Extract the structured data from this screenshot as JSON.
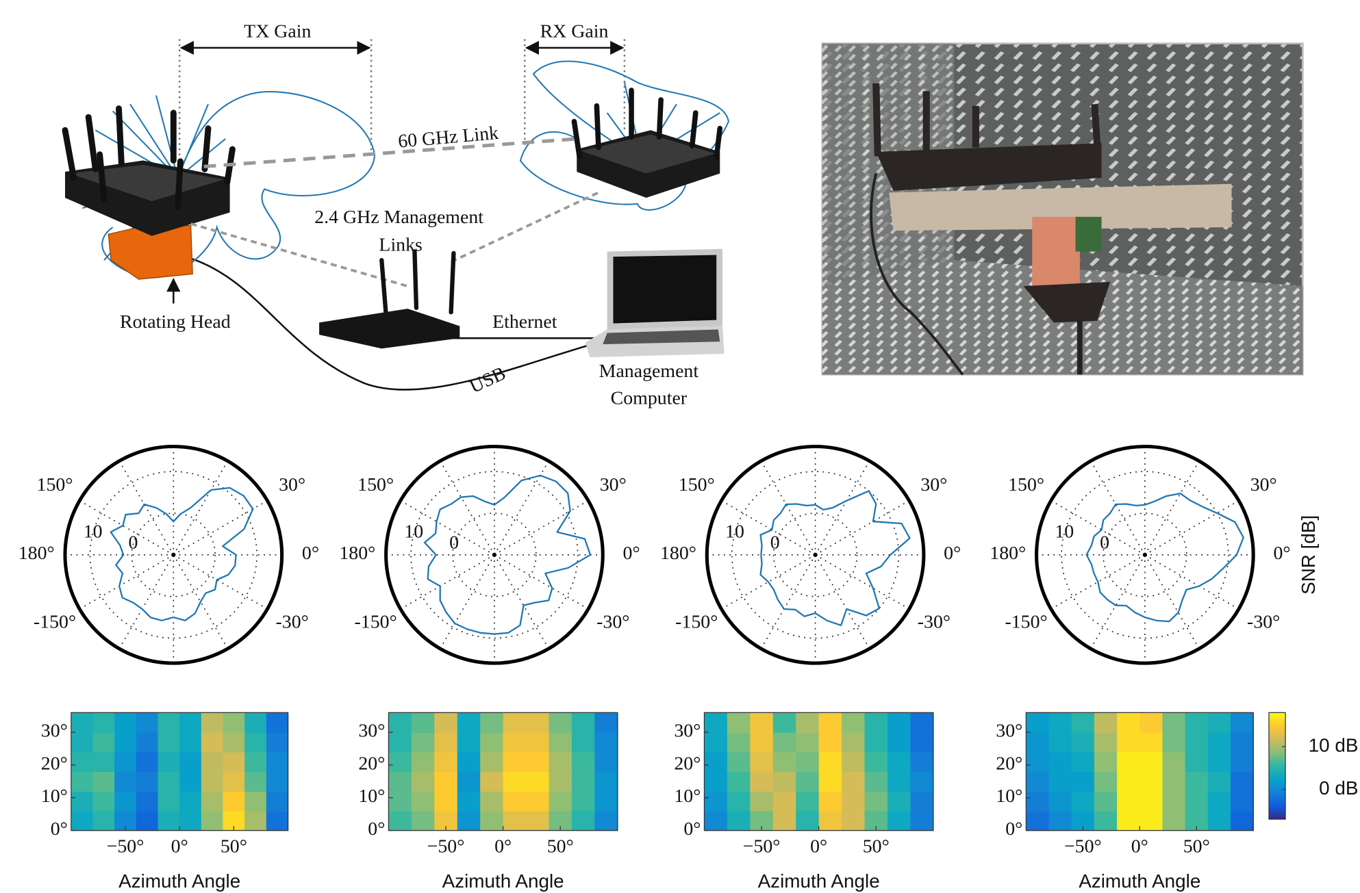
{
  "diagram": {
    "tx_gain": "TX Gain",
    "rx_gain": "RX Gain",
    "link_60": "60 GHz Link",
    "mgmt_line1": "2.4 GHz Management",
    "mgmt_line2": "Links",
    "rotating_head": "Rotating Head",
    "ethernet": "Ethernet",
    "usb": "USB",
    "computer_line1": "Management",
    "computer_line2": "Computer"
  },
  "chart_data": [
    {
      "type": "polar",
      "rlim": [
        -10,
        16
      ],
      "rticks": [
        0,
        10
      ],
      "thetaticks": [
        {
          "value": 0,
          "label": "0°"
        },
        {
          "value": 30,
          "label": "30°"
        },
        {
          "value": 60,
          "label": null
        },
        {
          "value": 90,
          "label": null
        },
        {
          "value": 120,
          "label": null
        },
        {
          "value": 150,
          "label": "150°"
        },
        {
          "value": 180,
          "label": "180°"
        },
        {
          "value": -150,
          "label": "-150°"
        },
        {
          "value": -120,
          "label": null
        },
        {
          "value": -90,
          "label": null
        },
        {
          "value": -60,
          "label": null
        },
        {
          "value": -30,
          "label": "-30°"
        }
      ],
      "color": "#1f77b4",
      "x": [
        0,
        10,
        20,
        30,
        40,
        50,
        60,
        70,
        80,
        90,
        100,
        110,
        120,
        130,
        140,
        150,
        160,
        170,
        180,
        190,
        200,
        210,
        220,
        230,
        240,
        250,
        260,
        270,
        280,
        290,
        300,
        310,
        320,
        330,
        340,
        350
      ],
      "values": [
        5,
        2,
        8,
        12,
        12,
        11,
        8,
        2,
        0,
        -2,
        0,
        2,
        4,
        3,
        5,
        4,
        6,
        3,
        2,
        4,
        3,
        5,
        6,
        5,
        5,
        6,
        6,
        5,
        6,
        5,
        3,
        2,
        3,
        2,
        4,
        5
      ]
    },
    {
      "type": "polar",
      "rlim": [
        -10,
        16
      ],
      "rticks": [
        0,
        10
      ],
      "thetaticks": [
        {
          "value": 0,
          "label": "0°"
        },
        {
          "value": 30,
          "label": "30°"
        },
        {
          "value": 60,
          "label": null
        },
        {
          "value": 90,
          "label": null
        },
        {
          "value": 120,
          "label": null
        },
        {
          "value": 150,
          "label": "150°"
        },
        {
          "value": 180,
          "label": "180°"
        },
        {
          "value": -150,
          "label": "-150°"
        },
        {
          "value": -120,
          "label": null
        },
        {
          "value": -90,
          "label": null
        },
        {
          "value": -60,
          "label": null
        },
        {
          "value": -30,
          "label": "-30°"
        }
      ],
      "color": "#1f77b4",
      "x": [
        0,
        10,
        20,
        30,
        40,
        50,
        60,
        70,
        80,
        90,
        100,
        110,
        120,
        130,
        140,
        150,
        160,
        170,
        180,
        190,
        200,
        210,
        220,
        230,
        240,
        250,
        260,
        270,
        280,
        290,
        300,
        310,
        320,
        330,
        340,
        350
      ],
      "values": [
        13,
        12,
        6,
        11,
        13,
        13,
        12,
        9,
        4,
        2,
        3,
        5,
        6,
        6,
        7,
        6,
        5,
        7,
        4,
        6,
        7,
        5,
        7,
        8,
        9,
        9,
        9,
        9,
        9,
        8,
        4,
        5,
        7,
        6,
        3,
        8
      ]
    },
    {
      "type": "polar",
      "rlim": [
        -10,
        16
      ],
      "rticks": [
        0,
        10
      ],
      "thetaticks": [
        {
          "value": 0,
          "label": "0°"
        },
        {
          "value": 30,
          "label": "30°"
        },
        {
          "value": 60,
          "label": null
        },
        {
          "value": 90,
          "label": null
        },
        {
          "value": 120,
          "label": null
        },
        {
          "value": 150,
          "label": "150°"
        },
        {
          "value": 180,
          "label": "180°"
        },
        {
          "value": -150,
          "label": "-150°"
        },
        {
          "value": -120,
          "label": null
        },
        {
          "value": -90,
          "label": null
        },
        {
          "value": -60,
          "label": null
        },
        {
          "value": -30,
          "label": "-30°"
        }
      ],
      "color": "#1f77b4",
      "x": [
        0,
        10,
        20,
        30,
        40,
        50,
        60,
        70,
        80,
        90,
        100,
        110,
        120,
        130,
        140,
        150,
        160,
        170,
        180,
        190,
        200,
        210,
        220,
        230,
        240,
        250,
        260,
        270,
        280,
        290,
        300,
        310,
        320,
        330,
        340,
        350
      ],
      "values": [
        8,
        13,
        12,
        6,
        9,
        10,
        5,
        2,
        1,
        2,
        2,
        3,
        4,
        3,
        3,
        2,
        4,
        3,
        3,
        3,
        4,
        3,
        3,
        4,
        5,
        4,
        5,
        4,
        6,
        8,
        5,
        9,
        10,
        6,
        3,
        6
      ]
    },
    {
      "type": "polar",
      "rlim": [
        -10,
        16
      ],
      "rticks": [
        0,
        10
      ],
      "thetaticks": [
        {
          "value": 0,
          "label": "0°"
        },
        {
          "value": 30,
          "label": "30°"
        },
        {
          "value": 60,
          "label": null
        },
        {
          "value": 90,
          "label": null
        },
        {
          "value": 120,
          "label": null
        },
        {
          "value": 150,
          "label": "150°"
        },
        {
          "value": 180,
          "label": "180°"
        },
        {
          "value": -150,
          "label": "-150°"
        },
        {
          "value": -120,
          "label": null
        },
        {
          "value": -90,
          "label": null
        },
        {
          "value": -60,
          "label": null
        },
        {
          "value": -30,
          "label": "-30°"
        }
      ],
      "color": "#1f77b4",
      "rlabel": "SNR [dB]",
      "x": [
        0,
        10,
        20,
        30,
        40,
        50,
        60,
        70,
        80,
        90,
        100,
        110,
        120,
        130,
        140,
        150,
        160,
        170,
        180,
        190,
        200,
        210,
        220,
        230,
        240,
        250,
        260,
        270,
        280,
        290,
        300,
        310,
        320,
        330,
        340,
        350
      ],
      "values": [
        12,
        14,
        13,
        10,
        8,
        7,
        7,
        5,
        3,
        2,
        2,
        3,
        4,
        3,
        3,
        2,
        3,
        3,
        4,
        3,
        3,
        3,
        4,
        4,
        4,
        3,
        4,
        5,
        6,
        7,
        6,
        4,
        3,
        5,
        7,
        9
      ]
    },
    {
      "type": "heatmap",
      "xlabel": "Azimuth Angle",
      "xlim": [
        -100,
        100
      ],
      "ylim": [
        0,
        36
      ],
      "clim": [
        -7,
        18
      ],
      "xbins": [
        -100,
        -80,
        -60,
        -40,
        -20,
        0,
        20,
        40,
        60,
        80,
        100
      ],
      "ybins": [
        0,
        6,
        12,
        18,
        24,
        30,
        36
      ],
      "xticks": [
        {
          "value": -50,
          "label": "−50°"
        },
        {
          "value": 0,
          "label": "0°"
        },
        {
          "value": 50,
          "label": "50°"
        }
      ],
      "yticks": [
        {
          "value": 0,
          "label": "0°"
        },
        {
          "value": 10,
          "label": "10°"
        },
        {
          "value": 20,
          "label": "20°"
        },
        {
          "value": 30,
          "label": "30°"
        }
      ],
      "z": [
        [
          3,
          5,
          0,
          -3,
          4,
          3,
          9,
          16,
          10,
          -2
        ],
        [
          4,
          6,
          1,
          -2,
          5,
          3,
          10,
          15,
          9,
          -1
        ],
        [
          6,
          7,
          0,
          -1,
          5,
          2,
          11,
          13,
          7,
          0
        ],
        [
          5,
          5,
          1,
          -2,
          4,
          2,
          11,
          12,
          6,
          0
        ],
        [
          4,
          6,
          2,
          -1,
          5,
          3,
          12,
          10,
          5,
          -1
        ],
        [
          4,
          5,
          2,
          0,
          5,
          3,
          11,
          9,
          4,
          -2
        ]
      ]
    },
    {
      "type": "heatmap",
      "xlabel": "Azimuth Angle",
      "xlim": [
        -100,
        100
      ],
      "ylim": [
        0,
        36
      ],
      "clim": [
        -7,
        18
      ],
      "xbins": [
        -100,
        -80,
        -60,
        -40,
        -20,
        0,
        20,
        40,
        60,
        80,
        100
      ],
      "ybins": [
        0,
        6,
        12,
        18,
        24,
        30,
        36
      ],
      "xticks": [
        {
          "value": -50,
          "label": "−50°"
        },
        {
          "value": 0,
          "label": "0°"
        },
        {
          "value": 50,
          "label": "50°"
        }
      ],
      "yticks": [
        {
          "value": 0,
          "label": "0°"
        },
        {
          "value": 10,
          "label": "10°"
        },
        {
          "value": 20,
          "label": "20°"
        },
        {
          "value": 30,
          "label": "30°"
        }
      ],
      "z": [
        [
          6,
          8,
          14,
          1,
          9,
          13,
          13,
          8,
          5,
          0
        ],
        [
          7,
          9,
          15,
          2,
          10,
          15,
          15,
          9,
          6,
          1
        ],
        [
          7,
          10,
          15,
          1,
          12,
          16,
          16,
          10,
          6,
          1
        ],
        [
          6,
          9,
          14,
          2,
          10,
          15,
          15,
          10,
          6,
          0
        ],
        [
          5,
          8,
          13,
          3,
          9,
          14,
          14,
          9,
          5,
          0
        ],
        [
          5,
          7,
          12,
          3,
          8,
          13,
          13,
          8,
          5,
          -1
        ]
      ]
    },
    {
      "type": "heatmap",
      "xlabel": "Azimuth Angle",
      "xlim": [
        -100,
        100
      ],
      "ylim": [
        0,
        36
      ],
      "clim": [
        -7,
        18
      ],
      "xbins": [
        -100,
        -80,
        -60,
        -40,
        -20,
        0,
        20,
        40,
        60,
        80,
        100
      ],
      "ybins": [
        0,
        6,
        12,
        18,
        24,
        30,
        36
      ],
      "xticks": [
        {
          "value": -50,
          "label": "−50°"
        },
        {
          "value": 0,
          "label": "0°"
        },
        {
          "value": 50,
          "label": "50°"
        }
      ],
      "yticks": [
        {
          "value": 0,
          "label": "0°"
        },
        {
          "value": 10,
          "label": "10°"
        },
        {
          "value": 20,
          "label": "20°"
        },
        {
          "value": 30,
          "label": "30°"
        }
      ],
      "z": [
        [
          0,
          4,
          8,
          12,
          5,
          14,
          12,
          7,
          3,
          -1
        ],
        [
          1,
          5,
          10,
          12,
          6,
          15,
          12,
          8,
          4,
          -1
        ],
        [
          2,
          6,
          12,
          11,
          7,
          16,
          12,
          7,
          3,
          0
        ],
        [
          2,
          7,
          13,
          9,
          8,
          16,
          11,
          6,
          3,
          -1
        ],
        [
          3,
          8,
          14,
          8,
          9,
          15,
          10,
          5,
          2,
          -2
        ],
        [
          3,
          9,
          14,
          6,
          10,
          15,
          9,
          5,
          2,
          -2
        ]
      ]
    },
    {
      "type": "heatmap",
      "xlabel": "Azimuth Angle",
      "xlim": [
        -100,
        100
      ],
      "ylim": [
        0,
        36
      ],
      "clim": [
        -7,
        18
      ],
      "xbins": [
        -100,
        -80,
        -60,
        -40,
        -20,
        0,
        20,
        40,
        60,
        80,
        100
      ],
      "ybins": [
        0,
        6,
        12,
        18,
        24,
        30,
        36
      ],
      "xticks": [
        {
          "value": -50,
          "label": "−50°"
        },
        {
          "value": 0,
          "label": "0°"
        },
        {
          "value": 50,
          "label": "50°"
        }
      ],
      "yticks": [
        {
          "value": 0,
          "label": "0°"
        },
        {
          "value": 10,
          "label": "10°"
        },
        {
          "value": 20,
          "label": "20°"
        },
        {
          "value": 30,
          "label": "30°"
        }
      ],
      "cticks": [
        {
          "value": 10,
          "label": "10 dB"
        },
        {
          "value": 0,
          "label": "0 dB"
        }
      ],
      "z": [
        [
          -2,
          0,
          2,
          6,
          17,
          17,
          9,
          6,
          3,
          -3
        ],
        [
          -1,
          1,
          3,
          7,
          17,
          17,
          9,
          6,
          3,
          -2
        ],
        [
          0,
          2,
          2,
          8,
          17,
          17,
          9,
          6,
          4,
          -2
        ],
        [
          1,
          2,
          3,
          9,
          17,
          17,
          9,
          5,
          3,
          -1
        ],
        [
          1,
          3,
          4,
          10,
          16,
          16,
          8,
          5,
          3,
          -1
        ],
        [
          2,
          3,
          5,
          11,
          16,
          15,
          8,
          5,
          4,
          0
        ]
      ]
    }
  ]
}
